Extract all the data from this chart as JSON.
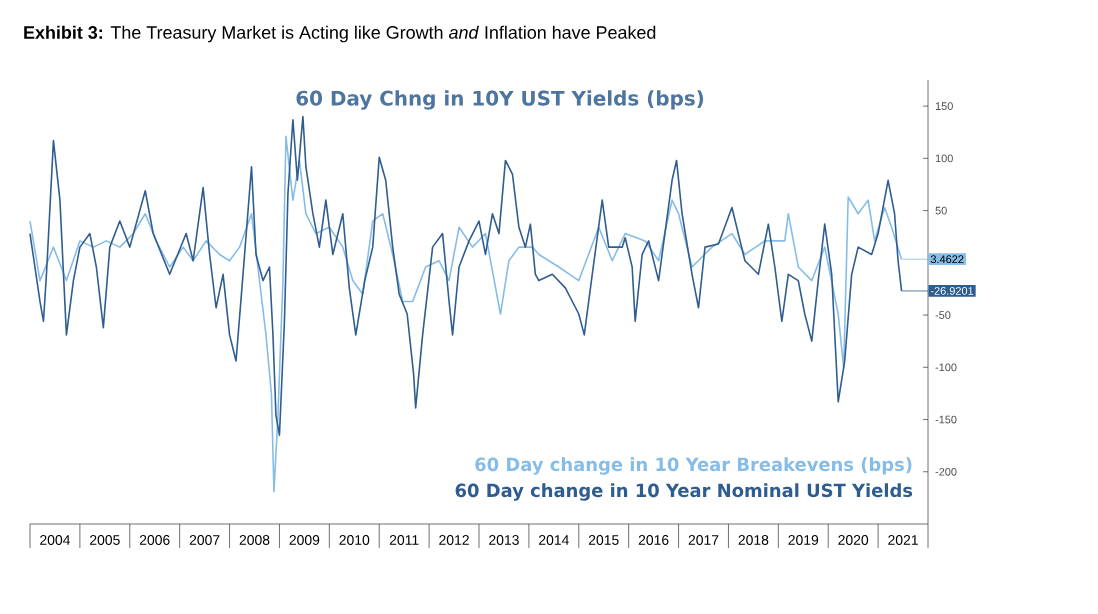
{
  "chart_data": {
    "type": "line",
    "title": "**Exhibit 3:**  The Treasury Market is Acting like Growth *and* Inflation have Peaked",
    "subtitle": "60 Day Chng in 10Y UST Yields (bps)",
    "series": [
      {
        "name": "60 Day change in 10 Year Breakevens (bps)",
        "color": "#86bde8",
        "x": [
          2004.0,
          2004.2,
          2004.47,
          2004.73,
          2005.0,
          2005.27,
          2005.53,
          2005.8,
          2006.07,
          2006.31,
          2006.53,
          2006.8,
          2007.07,
          2007.27,
          2007.53,
          2007.8,
          2008.0,
          2008.2,
          2008.44,
          2008.6,
          2008.73,
          2008.84,
          2008.89,
          2008.97,
          2009.07,
          2009.13,
          2009.27,
          2009.4,
          2009.53,
          2009.73,
          2010.0,
          2010.27,
          2010.47,
          2010.67,
          2010.87,
          2011.07,
          2011.27,
          2011.47,
          2011.67,
          2011.93,
          2012.2,
          2012.4,
          2012.6,
          2012.87,
          2013.13,
          2013.43,
          2013.6,
          2013.8,
          2014.07,
          2014.2,
          2014.6,
          2015.0,
          2015.4,
          2015.67,
          2015.93,
          2016.33,
          2016.6,
          2016.87,
          2017.0,
          2017.27,
          2017.67,
          2018.07,
          2018.33,
          2018.73,
          2019.13,
          2019.2,
          2019.4,
          2019.67,
          2019.93,
          2020.2,
          2020.31,
          2020.4,
          2020.6,
          2020.8,
          2020.93,
          2021.13,
          2021.27,
          2021.47
        ],
        "values": [
          40,
          -17,
          15,
          -17,
          21,
          15,
          21,
          15,
          28,
          47,
          21,
          -4,
          15,
          2,
          21,
          8,
          2,
          15,
          47,
          -17,
          -69,
          -126,
          -219,
          -146,
          -17,
          121,
          60,
          98,
          47,
          28,
          34,
          15,
          -17,
          -30,
          40,
          47,
          8,
          -37,
          -37,
          -4,
          2,
          -17,
          34,
          15,
          28,
          -49,
          2,
          15,
          15,
          8,
          -4,
          -17,
          34,
          2,
          28,
          21,
          2,
          60,
          47,
          -4,
          15,
          28,
          8,
          21,
          21,
          47,
          -4,
          -17,
          15,
          -49,
          -101,
          63,
          47,
          60,
          21,
          53,
          34,
          3.4622
        ]
      },
      {
        "name": "60 Day change in 10 Year Nominal UST Yields",
        "color": "#2f5d8f",
        "x": [
          2004.0,
          2004.2,
          2004.27,
          2004.33,
          2004.47,
          2004.6,
          2004.73,
          2004.87,
          2005.0,
          2005.2,
          2005.33,
          2005.47,
          2005.6,
          2005.8,
          2006.0,
          2006.31,
          2006.47,
          2006.8,
          2007.13,
          2007.27,
          2007.47,
          2007.6,
          2007.73,
          2007.87,
          2008.0,
          2008.13,
          2008.27,
          2008.44,
          2008.53,
          2008.67,
          2008.8,
          2008.87,
          2008.93,
          2009.0,
          2009.1,
          2009.17,
          2009.27,
          2009.36,
          2009.47,
          2009.53,
          2009.67,
          2009.8,
          2009.93,
          2010.07,
          2010.27,
          2010.4,
          2010.53,
          2010.71,
          2010.87,
          2011.0,
          2011.13,
          2011.27,
          2011.4,
          2011.56,
          2011.69,
          2011.73,
          2011.87,
          2012.07,
          2012.27,
          2012.4,
          2012.47,
          2012.6,
          2012.8,
          2013.0,
          2013.13,
          2013.27,
          2013.4,
          2013.53,
          2013.67,
          2013.8,
          2013.93,
          2014.03,
          2014.13,
          2014.2,
          2014.47,
          2014.73,
          2015.0,
          2015.11,
          2015.27,
          2015.47,
          2015.6,
          2015.87,
          2015.93,
          2016.07,
          2016.13,
          2016.27,
          2016.4,
          2016.6,
          2016.87,
          2016.96,
          2017.07,
          2017.27,
          2017.4,
          2017.53,
          2017.8,
          2018.07,
          2018.33,
          2018.6,
          2018.8,
          2018.93,
          2019.07,
          2019.2,
          2019.4,
          2019.53,
          2019.67,
          2019.8,
          2019.93,
          2020.07,
          2020.2,
          2020.33,
          2020.47,
          2020.6,
          2020.87,
          2021.0,
          2021.2,
          2021.33,
          2021.4,
          2021.47
        ],
        "values": [
          28,
          -37,
          -56,
          -11,
          117,
          60,
          -69,
          -17,
          15,
          28,
          -4,
          -62,
          15,
          40,
          15,
          69,
          28,
          -11,
          28,
          2,
          72,
          8,
          -43,
          -11,
          -69,
          -94,
          -11,
          92,
          8,
          -17,
          -4,
          -69,
          -146,
          -165,
          -56,
          66,
          137,
          79,
          140,
          92,
          47,
          15,
          60,
          8,
          47,
          -24,
          -69,
          -17,
          15,
          101,
          79,
          15,
          -30,
          -49,
          -107,
          -139,
          -69,
          15,
          28,
          -37,
          -69,
          -4,
          21,
          40,
          8,
          47,
          28,
          98,
          85,
          34,
          15,
          37,
          -11,
          -17,
          -11,
          -24,
          -49,
          -69,
          -11,
          60,
          15,
          15,
          24,
          -4,
          -56,
          8,
          21,
          -17,
          79,
          98,
          47,
          -11,
          -43,
          15,
          18,
          53,
          2,
          -11,
          37,
          -4,
          -56,
          -11,
          -17,
          -49,
          -75,
          -17,
          37,
          -11,
          -133,
          -94,
          -11,
          15,
          8,
          28,
          79,
          47,
          2,
          -26.9201
        ]
      }
    ],
    "xlim": [
      2004,
      2022
    ],
    "xticks": [
      {
        "value": 2004,
        "label": null
      },
      {
        "value": 2004.5,
        "label": "2004"
      },
      {
        "value": 2005,
        "label": null
      },
      {
        "value": 2005.5,
        "label": "2005"
      },
      {
        "value": 2006,
        "label": null
      },
      {
        "value": 2006.5,
        "label": "2006"
      },
      {
        "value": 2007,
        "label": null
      },
      {
        "value": 2007.5,
        "label": "2007"
      },
      {
        "value": 2008,
        "label": null
      },
      {
        "value": 2008.5,
        "label": "2008"
      },
      {
        "value": 2009,
        "label": null
      },
      {
        "value": 2009.5,
        "label": "2009"
      },
      {
        "value": 2010,
        "label": null
      },
      {
        "value": 2010.5,
        "label": "2010"
      },
      {
        "value": 2011,
        "label": null
      },
      {
        "value": 2011.5,
        "label": "2011"
      },
      {
        "value": 2012,
        "label": null
      },
      {
        "value": 2012.5,
        "label": "2012"
      },
      {
        "value": 2013,
        "label": null
      },
      {
        "value": 2013.5,
        "label": "2013"
      },
      {
        "value": 2014,
        "label": null
      },
      {
        "value": 2014.5,
        "label": "2014"
      },
      {
        "value": 2015,
        "label": null
      },
      {
        "value": 2015.5,
        "label": "2015"
      },
      {
        "value": 2016,
        "label": null
      },
      {
        "value": 2016.5,
        "label": "2016"
      },
      {
        "value": 2017,
        "label": null
      },
      {
        "value": 2017.5,
        "label": "2017"
      },
      {
        "value": 2018,
        "label": null
      },
      {
        "value": 2018.5,
        "label": "2018"
      },
      {
        "value": 2019,
        "label": null
      },
      {
        "value": 2019.5,
        "label": "2019"
      },
      {
        "value": 2020,
        "label": null
      },
      {
        "value": 2020.5,
        "label": "2020"
      },
      {
        "value": 2021,
        "label": null
      },
      {
        "value": 2021.5,
        "label": "2021"
      },
      {
        "value": 2022,
        "label": null
      }
    ],
    "ylim": [
      -250,
      175
    ],
    "yticks": [
      150,
      100,
      50,
      -50,
      -100,
      -150,
      -200
    ],
    "legend": "bottom right",
    "annotations": [
      {
        "text": "3.4622",
        "x": 2021.47,
        "y": 3.4622
      },
      {
        "text": "-26.9201",
        "x": 2021.47,
        "y": -26.9201
      }
    ]
  }
}
